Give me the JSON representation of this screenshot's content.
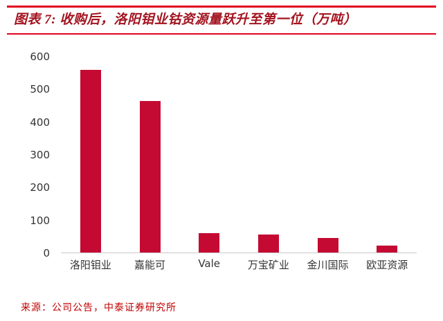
{
  "header": {
    "title": "图表 7: 收购后，洛阳钼业钴资源量跃升至第一位（万吨）"
  },
  "footer": {
    "source": "来源：公司公告，中泰证券研究所"
  },
  "colors": {
    "rule": "#e1001e",
    "title": "#a3131f",
    "bar": "#c40a33",
    "axis_text": "#333333",
    "axis_line": "#c9c9c9",
    "source_text": "#c00000"
  },
  "chart_data": {
    "type": "bar",
    "title": "收购后，洛阳钼业钴资源量跃升至第一位（万吨）",
    "categories": [
      "洛阳钼业",
      "嘉能可",
      "Vale",
      "万宝矿业",
      "金川国际",
      "欧亚资源"
    ],
    "values": [
      560,
      465,
      60,
      55,
      45,
      22
    ],
    "xlabel": "",
    "ylabel": "",
    "ylim": [
      0,
      600
    ],
    "yticks": [
      0,
      100,
      200,
      300,
      400,
      500,
      600
    ],
    "grid": false,
    "legend": false,
    "bar_color": "#c40a33",
    "source": "来源：公司公告，中泰证券研究所"
  }
}
